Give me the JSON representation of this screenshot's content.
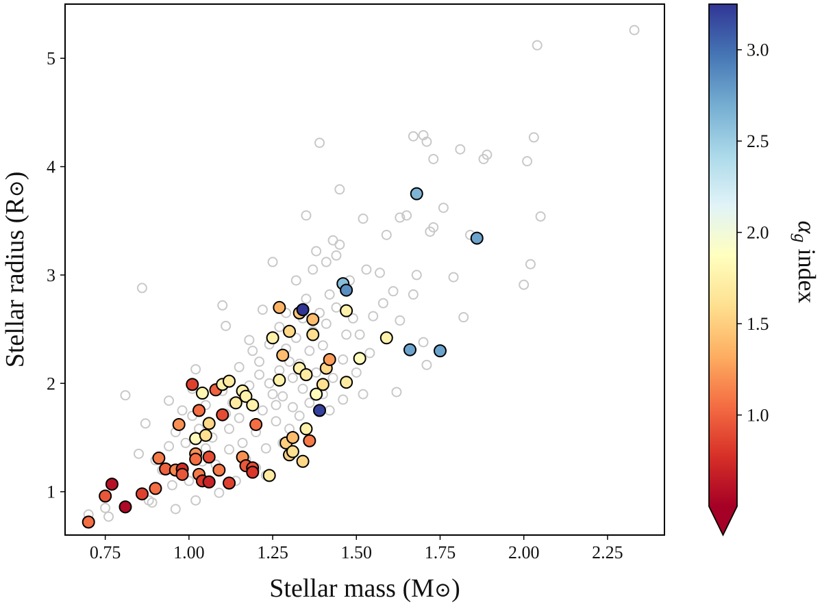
{
  "chart_data": {
    "type": "scatter",
    "xlabel": "Stellar mass (M",
    "xlabel_unit_symbol": "⊙",
    "xlabel_close": ")",
    "ylabel": "Stellar radius (R",
    "ylabel_unit_symbol": "⊙",
    "ylabel_close": ")",
    "xlim": [
      0.63,
      2.42
    ],
    "ylim": [
      0.6,
      5.5
    ],
    "x_ticks": [
      {
        "value": 0.75,
        "label": "0.75"
      },
      {
        "value": 1.0,
        "label": "1.00"
      },
      {
        "value": 1.25,
        "label": "1.25"
      },
      {
        "value": 1.5,
        "label": "1.50"
      },
      {
        "value": 1.75,
        "label": "1.75"
      },
      {
        "value": 2.0,
        "label": "2.00"
      },
      {
        "value": 2.25,
        "label": "2.25"
      }
    ],
    "y_ticks": [
      {
        "value": 1,
        "label": "1"
      },
      {
        "value": 2,
        "label": "2"
      },
      {
        "value": 3,
        "label": "3"
      },
      {
        "value": 4,
        "label": "4"
      },
      {
        "value": 5,
        "label": "5"
      }
    ],
    "grid": false,
    "colorbar": {
      "label_symbol": "α",
      "label_sub": "g",
      "label_text": " index",
      "range": [
        0.5,
        3.25
      ],
      "extend": "min",
      "colormap": [
        "#a50026",
        "#d73027",
        "#f46d43",
        "#fdae61",
        "#fee090",
        "#ffffbf",
        "#e0f3f8",
        "#abd9e9",
        "#74add1",
        "#4575b4",
        "#313695"
      ],
      "ticks": [
        {
          "value": 1.0,
          "label": "1.0"
        },
        {
          "value": 1.5,
          "label": "1.5"
        },
        {
          "value": 2.0,
          "label": "2.0"
        },
        {
          "value": 2.5,
          "label": "2.5"
        },
        {
          "value": 3.0,
          "label": "3.0"
        }
      ]
    },
    "series": [
      {
        "marker": "open-circle",
        "color": "#c8c8c8",
        "points": [
          [
            0.7,
            0.79
          ],
          [
            0.75,
            0.85
          ],
          [
            0.76,
            0.77
          ],
          [
            0.81,
            1.89
          ],
          [
            0.85,
            1.35
          ],
          [
            0.86,
            2.88
          ],
          [
            0.87,
            1.63
          ],
          [
            0.88,
            0.92
          ],
          [
            0.89,
            0.9
          ],
          [
            0.9,
            1.29
          ],
          [
            0.92,
            1.2
          ],
          [
            0.94,
            1.42
          ],
          [
            0.94,
            1.84
          ],
          [
            0.95,
            1.06
          ],
          [
            0.96,
            1.55
          ],
          [
            0.96,
            0.84
          ],
          [
            0.98,
            1.75
          ],
          [
            0.99,
            1.45
          ],
          [
            1.0,
            1.1
          ],
          [
            1.01,
            1.7
          ],
          [
            1.01,
            1.95
          ],
          [
            1.02,
            2.13
          ],
          [
            1.02,
            0.92
          ],
          [
            1.03,
            1.58
          ],
          [
            1.04,
            1.28
          ],
          [
            1.05,
            1.4
          ],
          [
            1.05,
            1.8
          ],
          [
            1.06,
            1.62
          ],
          [
            1.07,
            1.5
          ],
          [
            1.08,
            1.25
          ],
          [
            1.09,
            0.99
          ],
          [
            1.1,
            2.72
          ],
          [
            1.1,
            1.93
          ],
          [
            1.11,
            1.72
          ],
          [
            1.11,
            2.53
          ],
          [
            1.12,
            1.39
          ],
          [
            1.12,
            1.58
          ],
          [
            1.13,
            1.82
          ],
          [
            1.14,
            1.1
          ],
          [
            1.15,
            1.68
          ],
          [
            1.15,
            2.15
          ],
          [
            1.16,
            1.45
          ],
          [
            1.17,
            1.3
          ],
          [
            1.18,
            1.98
          ],
          [
            1.18,
            2.4
          ],
          [
            1.19,
            2.3
          ],
          [
            1.2,
            1.55
          ],
          [
            1.2,
            1.22
          ],
          [
            1.21,
            2.08
          ],
          [
            1.21,
            2.2
          ],
          [
            1.22,
            2.68
          ],
          [
            1.22,
            1.75
          ],
          [
            1.23,
            1.15
          ],
          [
            1.23,
            1.4
          ],
          [
            1.24,
            2.0
          ],
          [
            1.24,
            2.36
          ],
          [
            1.25,
            1.9
          ],
          [
            1.25,
            3.12
          ],
          [
            1.26,
            1.65
          ],
          [
            1.26,
            1.8
          ],
          [
            1.27,
            2.12
          ],
          [
            1.27,
            2.52
          ],
          [
            1.28,
            1.45
          ],
          [
            1.28,
            1.88
          ],
          [
            1.29,
            2.32
          ],
          [
            1.29,
            2.65
          ],
          [
            1.3,
            2.2
          ],
          [
            1.3,
            1.58
          ],
          [
            1.31,
            1.78
          ],
          [
            1.31,
            2.05
          ],
          [
            1.32,
            2.42
          ],
          [
            1.32,
            2.95
          ],
          [
            1.33,
            1.7
          ],
          [
            1.33,
            2.18
          ],
          [
            1.34,
            2.6
          ],
          [
            1.34,
            1.95
          ],
          [
            1.35,
            2.78
          ],
          [
            1.35,
            3.55
          ],
          [
            1.36,
            2.3
          ],
          [
            1.36,
            1.82
          ],
          [
            1.37,
            2.48
          ],
          [
            1.37,
            3.05
          ],
          [
            1.38,
            2.1
          ],
          [
            1.38,
            3.22
          ],
          [
            1.39,
            4.22
          ],
          [
            1.39,
            2.65
          ],
          [
            1.4,
            1.9
          ],
          [
            1.4,
            2.35
          ],
          [
            1.41,
            3.12
          ],
          [
            1.41,
            2.55
          ],
          [
            1.42,
            1.75
          ],
          [
            1.42,
            2.82
          ],
          [
            1.43,
            3.32
          ],
          [
            1.43,
            2.05
          ],
          [
            1.44,
            2.7
          ],
          [
            1.44,
            3.18
          ],
          [
            1.45,
            3.28
          ],
          [
            1.45,
            3.79
          ],
          [
            1.46,
            2.22
          ],
          [
            1.46,
            1.85
          ],
          [
            1.47,
            2.45
          ],
          [
            1.48,
            2.95
          ],
          [
            1.49,
            2.6
          ],
          [
            1.5,
            2.1
          ],
          [
            1.51,
            2.45
          ],
          [
            1.52,
            1.9
          ],
          [
            1.52,
            3.52
          ],
          [
            1.53,
            3.05
          ],
          [
            1.54,
            2.28
          ],
          [
            1.55,
            2.62
          ],
          [
            1.57,
            3.02
          ],
          [
            1.58,
            2.74
          ],
          [
            1.59,
            3.37
          ],
          [
            1.61,
            2.85
          ],
          [
            1.62,
            1.92
          ],
          [
            1.63,
            2.58
          ],
          [
            1.63,
            3.53
          ],
          [
            1.65,
            3.55
          ],
          [
            1.67,
            2.82
          ],
          [
            1.67,
            4.28
          ],
          [
            1.68,
            3.0
          ],
          [
            1.7,
            4.29
          ],
          [
            1.7,
            2.38
          ],
          [
            1.71,
            4.23
          ],
          [
            1.71,
            2.17
          ],
          [
            1.72,
            3.4
          ],
          [
            1.73,
            3.44
          ],
          [
            1.73,
            4.07
          ],
          [
            1.76,
            3.62
          ],
          [
            1.79,
            2.98
          ],
          [
            1.81,
            4.16
          ],
          [
            1.82,
            2.61
          ],
          [
            1.84,
            3.37
          ],
          [
            1.88,
            4.07
          ],
          [
            1.89,
            4.11
          ],
          [
            2.0,
            2.91
          ],
          [
            2.01,
            4.05
          ],
          [
            2.02,
            3.1
          ],
          [
            2.03,
            4.27
          ],
          [
            2.04,
            5.12
          ],
          [
            2.05,
            3.54
          ],
          [
            2.33,
            5.26
          ]
        ]
      },
      {
        "marker": "filled-circle",
        "points": [
          [
            0.7,
            0.72,
            1.05
          ],
          [
            0.75,
            0.96,
            0.95
          ],
          [
            0.77,
            1.07,
            0.6
          ],
          [
            0.81,
            0.86,
            0.55
          ],
          [
            0.86,
            0.98,
            0.85
          ],
          [
            0.9,
            1.03,
            1.05
          ],
          [
            0.91,
            1.31,
            1.1
          ],
          [
            0.93,
            1.21,
            1.0
          ],
          [
            0.96,
            1.2,
            1.15
          ],
          [
            0.97,
            1.62,
            1.2
          ],
          [
            0.98,
            1.21,
            0.75
          ],
          [
            0.98,
            1.16,
            0.95
          ],
          [
            1.01,
            1.99,
            0.85
          ],
          [
            1.02,
            1.35,
            1.2
          ],
          [
            1.02,
            1.3,
            1.05
          ],
          [
            1.02,
            1.49,
            1.85
          ],
          [
            1.03,
            1.16,
            1.1
          ],
          [
            1.03,
            1.75,
            1.05
          ],
          [
            1.04,
            1.91,
            1.8
          ],
          [
            1.04,
            1.1,
            0.8
          ],
          [
            1.05,
            1.52,
            1.6
          ],
          [
            1.06,
            1.09,
            0.7
          ],
          [
            1.06,
            1.32,
            0.9
          ],
          [
            1.06,
            1.63,
            1.55
          ],
          [
            1.08,
            1.94,
            1.0
          ],
          [
            1.09,
            1.2,
            1.1
          ],
          [
            1.1,
            1.99,
            1.75
          ],
          [
            1.1,
            1.71,
            0.9
          ],
          [
            1.12,
            1.08,
            0.85
          ],
          [
            1.12,
            2.02,
            1.7
          ],
          [
            1.14,
            1.82,
            1.7
          ],
          [
            1.16,
            1.93,
            1.75
          ],
          [
            1.16,
            1.32,
            1.2
          ],
          [
            1.17,
            1.24,
            0.95
          ],
          [
            1.17,
            1.88,
            1.75
          ],
          [
            1.19,
            1.22,
            0.9
          ],
          [
            1.19,
            1.8,
            1.75
          ],
          [
            1.19,
            1.18,
            0.8
          ],
          [
            1.2,
            1.62,
            1.05
          ],
          [
            1.24,
            1.15,
            1.7
          ],
          [
            1.25,
            2.42,
            1.75
          ],
          [
            1.27,
            2.03,
            1.75
          ],
          [
            1.27,
            2.7,
            1.35
          ],
          [
            1.28,
            2.26,
            1.4
          ],
          [
            1.29,
            1.45,
            1.5
          ],
          [
            1.3,
            2.48,
            1.55
          ],
          [
            1.3,
            1.34,
            1.5
          ],
          [
            1.31,
            1.37,
            1.6
          ],
          [
            1.31,
            1.5,
            1.4
          ],
          [
            1.33,
            2.14,
            1.75
          ],
          [
            1.33,
            2.65,
            1.45
          ],
          [
            1.34,
            2.68,
            3.25
          ],
          [
            1.34,
            1.28,
            1.55
          ],
          [
            1.35,
            2.08,
            1.7
          ],
          [
            1.35,
            1.58,
            1.75
          ],
          [
            1.36,
            1.47,
            1.1
          ],
          [
            1.37,
            2.59,
            1.4
          ],
          [
            1.37,
            2.45,
            1.6
          ],
          [
            1.38,
            1.9,
            1.85
          ],
          [
            1.39,
            1.75,
            3.2
          ],
          [
            1.4,
            1.99,
            1.6
          ],
          [
            1.41,
            2.14,
            1.55
          ],
          [
            1.42,
            2.22,
            1.25
          ],
          [
            1.46,
            2.92,
            2.6
          ],
          [
            1.47,
            2.01,
            1.7
          ],
          [
            1.47,
            2.67,
            1.75
          ],
          [
            1.47,
            2.86,
            2.85
          ],
          [
            1.51,
            2.23,
            1.85
          ],
          [
            1.59,
            2.42,
            1.75
          ],
          [
            1.66,
            2.31,
            2.75
          ],
          [
            1.68,
            3.75,
            2.65
          ],
          [
            1.75,
            2.3,
            2.75
          ],
          [
            1.86,
            3.34,
            2.75
          ]
        ]
      }
    ]
  }
}
